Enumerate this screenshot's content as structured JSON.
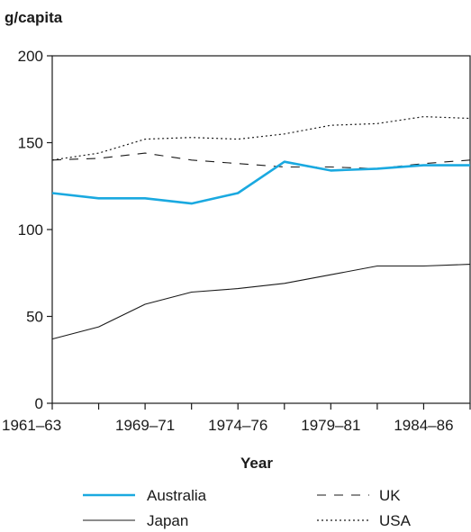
{
  "chart_data": {
    "type": "line",
    "ylabel": "g/capita",
    "xlabel": "Year",
    "ylim": [
      0,
      200
    ],
    "yticks": [
      0,
      50,
      100,
      150,
      200
    ],
    "x_tick_labels": [
      "1961–63",
      "1969–71",
      "1974–76",
      "1979–81",
      "1984–86"
    ],
    "x_points": 10,
    "series": [
      {
        "name": "Australia",
        "color": "#1aa9e0",
        "style": "solid-thick",
        "values": [
          121,
          118,
          118,
          115,
          121,
          139,
          134,
          135,
          137,
          137
        ]
      },
      {
        "name": "Japan",
        "color": "#1a1a1a",
        "style": "solid-thin",
        "values": [
          37,
          44,
          57,
          64,
          66,
          69,
          74,
          79,
          79,
          80
        ]
      },
      {
        "name": "UK",
        "color": "#1a1a1a",
        "style": "dashed",
        "values": [
          140,
          141,
          144,
          140,
          138,
          136,
          136,
          135,
          138,
          140
        ]
      },
      {
        "name": "USA",
        "color": "#1a1a1a",
        "style": "dotted",
        "values": [
          140,
          144,
          152,
          153,
          152,
          155,
          160,
          161,
          165,
          164
        ]
      }
    ],
    "grid": false,
    "legend_position": "bottom"
  }
}
